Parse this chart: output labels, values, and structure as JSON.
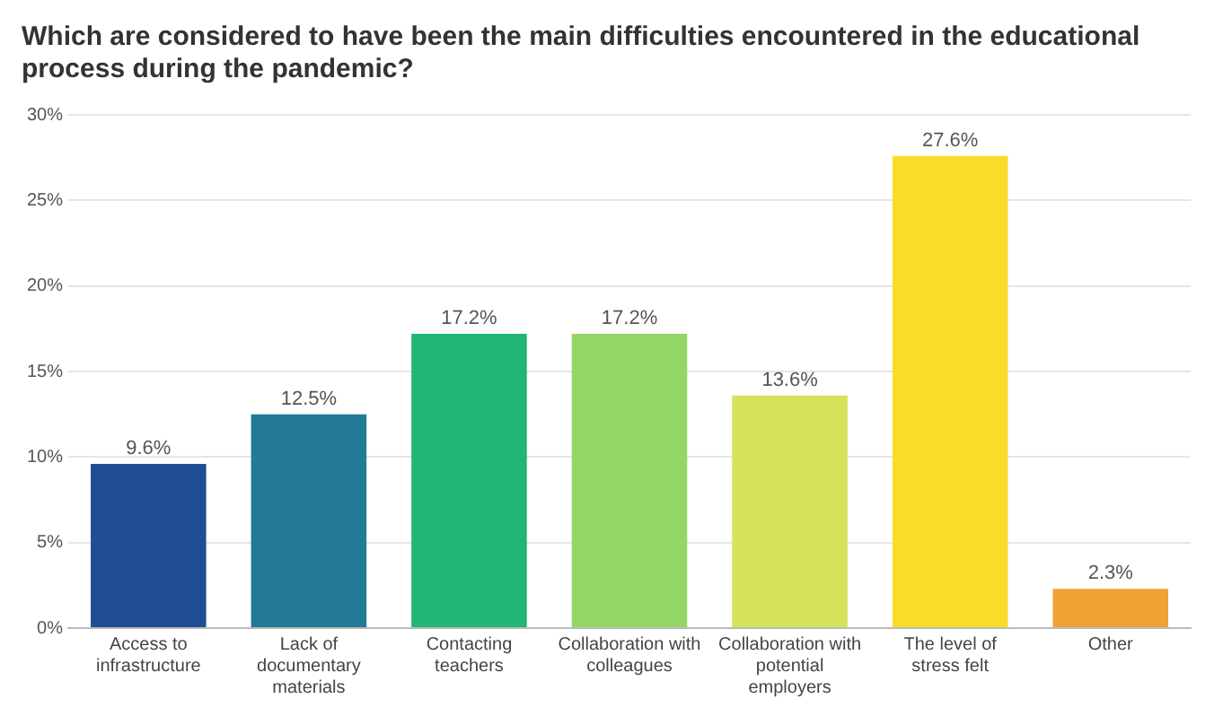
{
  "chart_data": {
    "type": "bar",
    "title": "Which are considered to have been the main difficulties encountered in the educational process during the pandemic?",
    "categories": [
      "Access to infrastructure",
      "Lack of documentary materials",
      "Contacting teachers",
      "Collaboration with colleagues",
      "Collaboration with potential employers",
      "The level of stress felt",
      "Other"
    ],
    "values": [
      9.6,
      12.5,
      17.2,
      17.2,
      13.6,
      27.6,
      2.3
    ],
    "value_labels": [
      "9.6%",
      "12.5%",
      "17.2%",
      "17.2%",
      "13.6%",
      "27.6%",
      "2.3%"
    ],
    "colors": [
      "#1f4e94",
      "#237a96",
      "#22b573",
      "#94d665",
      "#d6e35a",
      "#f8dc2a",
      "#f0a232"
    ],
    "ylim": [
      0,
      30
    ],
    "yticks": [
      {
        "value": 0,
        "label": "0%"
      },
      {
        "value": 5,
        "label": "5%"
      },
      {
        "value": 10,
        "label": "10%"
      },
      {
        "value": 15,
        "label": "15%"
      },
      {
        "value": 20,
        "label": "20%"
      },
      {
        "value": 25,
        "label": "25%"
      },
      {
        "value": 30,
        "label": "30%"
      }
    ],
    "grid": "y",
    "legend": false
  }
}
